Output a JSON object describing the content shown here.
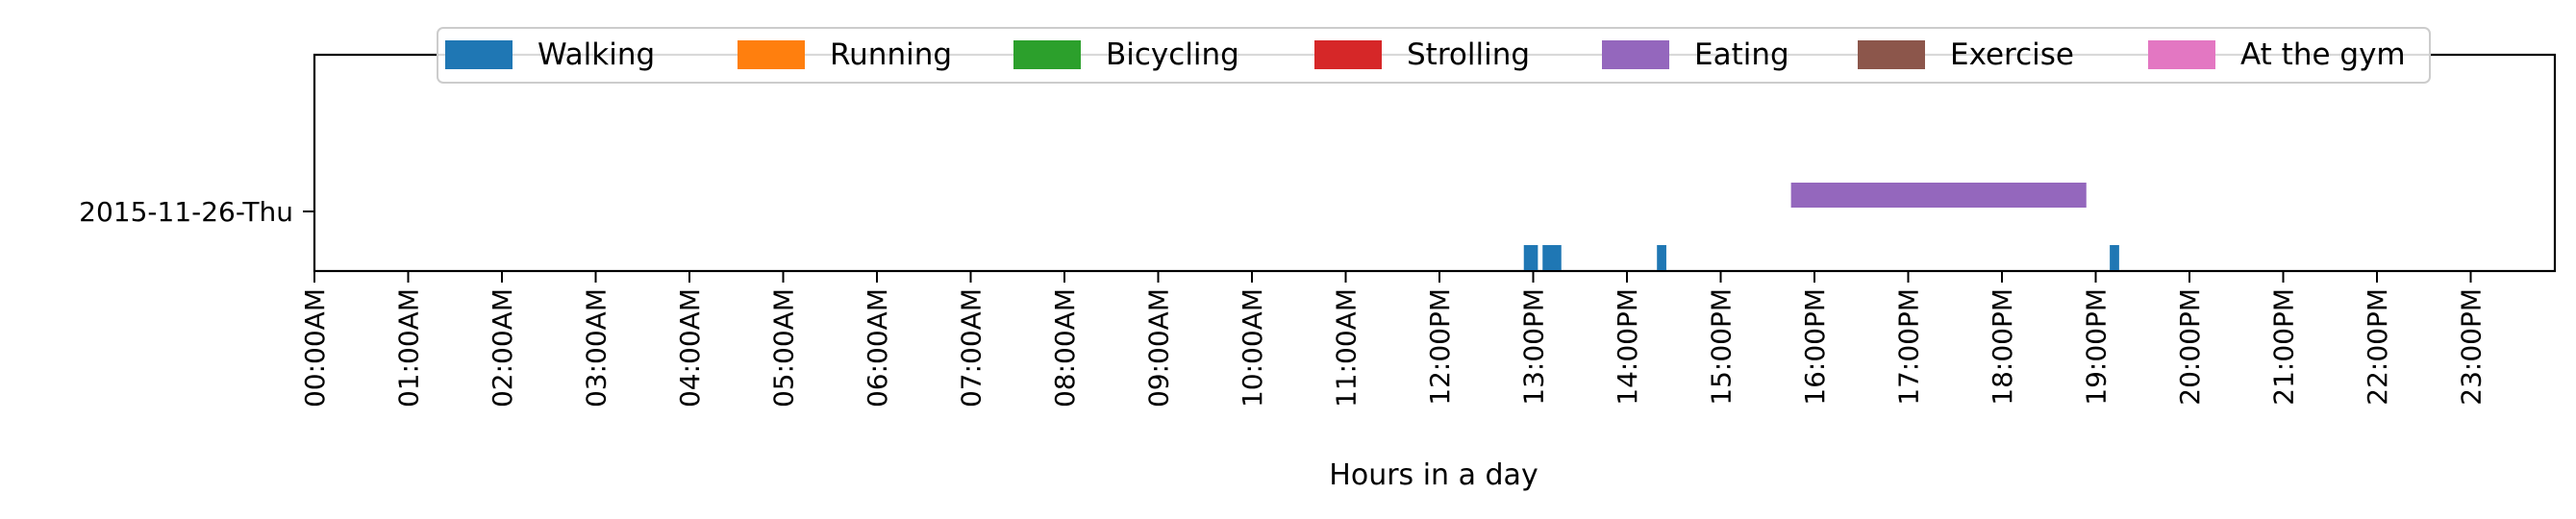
{
  "chart_data": {
    "type": "timeline",
    "xlabel": "Hours in a day",
    "x_range_hours": [
      0,
      24
    ],
    "grid": false,
    "legend_placement": "top-center",
    "y_categories": [
      "2015-11-26-Thu"
    ],
    "x_tick_labels": [
      "00:00AM",
      "01:00AM",
      "02:00AM",
      "03:00AM",
      "04:00AM",
      "05:00AM",
      "06:00AM",
      "07:00AM",
      "08:00AM",
      "09:00AM",
      "10:00AM",
      "11:00AM",
      "12:00PM",
      "13:00PM",
      "14:00PM",
      "15:00PM",
      "16:00PM",
      "17:00PM",
      "18:00PM",
      "19:00PM",
      "20:00PM",
      "21:00PM",
      "22:00PM",
      "23:00PM"
    ],
    "series": [
      {
        "name": "Walking",
        "color": "#1f77b4",
        "segments": [
          {
            "day": "2015-11-26-Thu",
            "start": 12.9,
            "end": 13.05
          },
          {
            "day": "2015-11-26-Thu",
            "start": 13.1,
            "end": 13.3
          },
          {
            "day": "2015-11-26-Thu",
            "start": 14.32,
            "end": 14.42
          },
          {
            "day": "2015-11-26-Thu",
            "start": 19.15,
            "end": 19.25
          }
        ]
      },
      {
        "name": "Running",
        "color": "#ff7f0e",
        "segments": []
      },
      {
        "name": "Bicycling",
        "color": "#2ca02c",
        "segments": []
      },
      {
        "name": "Strolling",
        "color": "#d62728",
        "segments": []
      },
      {
        "name": "Eating",
        "color": "#9467bd",
        "segments": [
          {
            "day": "2015-11-26-Thu",
            "start": 15.75,
            "end": 18.9
          }
        ]
      },
      {
        "name": "Exercise",
        "color": "#8c564b",
        "segments": []
      },
      {
        "name": "At the gym",
        "color": "#e377c2",
        "segments": []
      }
    ]
  }
}
